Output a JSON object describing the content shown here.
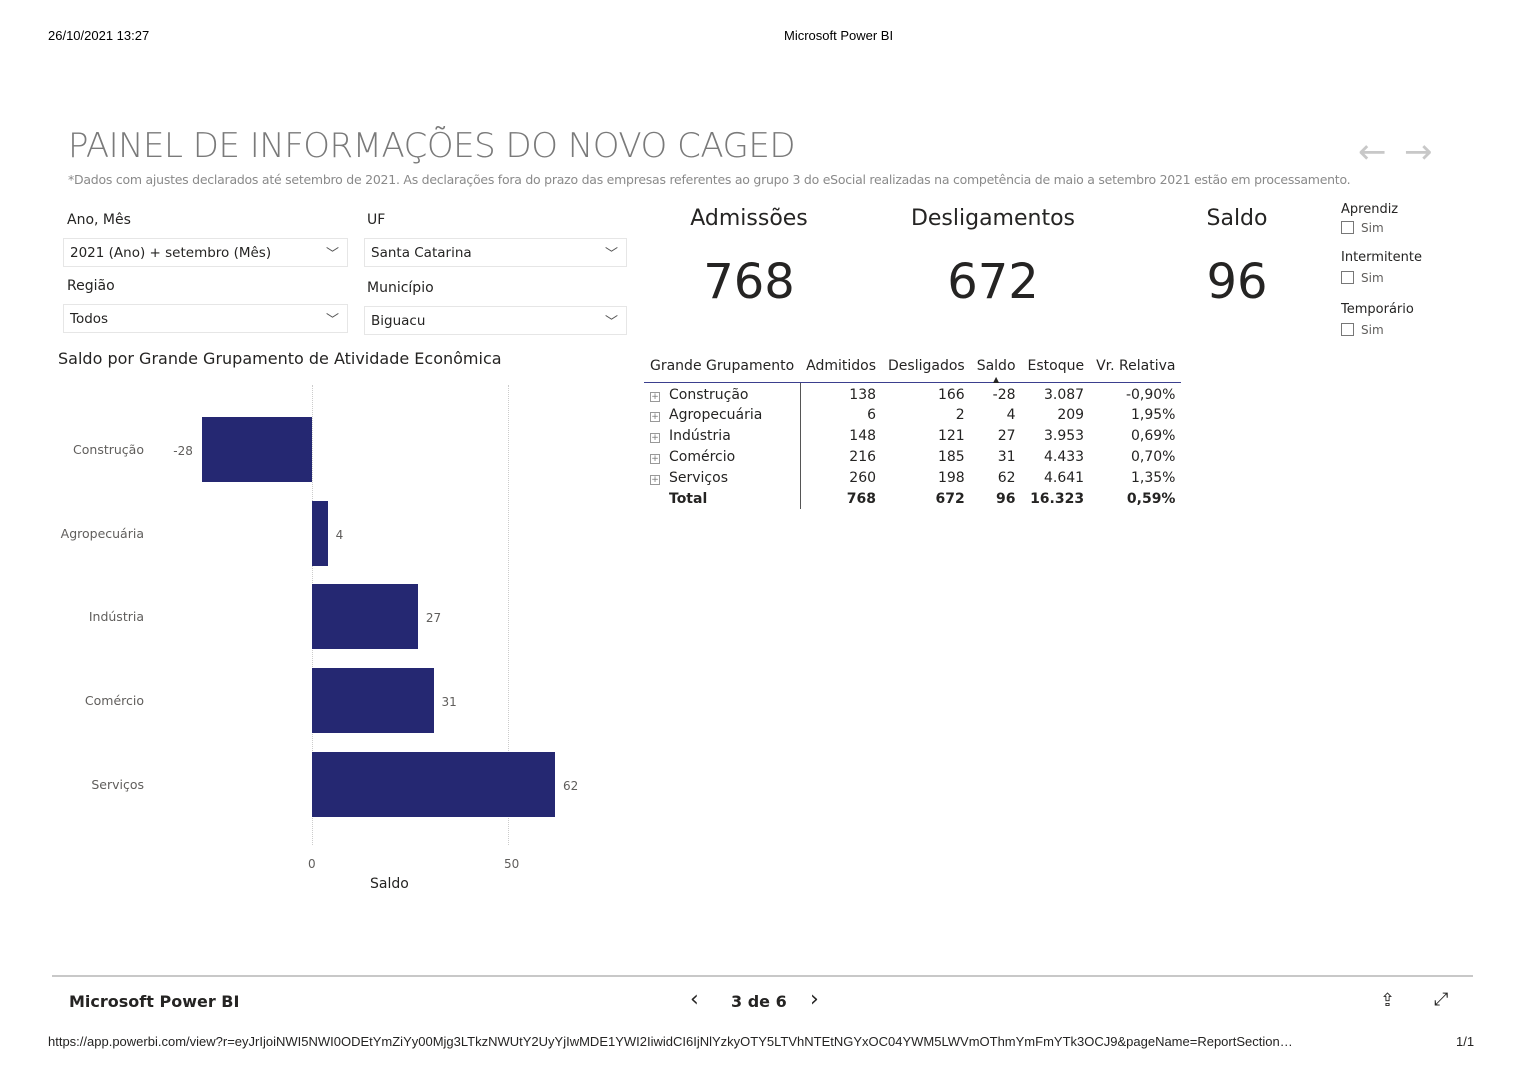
{
  "print_header": {
    "datetime": "26/10/2021 13:27",
    "title": "Microsoft Power BI"
  },
  "report": {
    "title": "PAINEL DE INFORMAÇÕES DO NOVO CAGED",
    "subtitle": "*Dados com ajustes declarados até setembro de 2021. As declarações fora do prazo das empresas referentes ao grupo 3 do eSocial realizadas na competência de maio a setembro 2021 estão em processamento."
  },
  "filters": {
    "ano_mes": {
      "label": "Ano, Mês",
      "value": "2021 (Ano) + setembro (Mês)"
    },
    "uf": {
      "label": "UF",
      "value": "Santa Catarina"
    },
    "regiao": {
      "label": "Região",
      "value": "Todos"
    },
    "municipio": {
      "label": "Município",
      "value": "Biguacu"
    }
  },
  "kpis": {
    "admissoes": {
      "label": "Admissões",
      "value": "768"
    },
    "desligamentos": {
      "label": "Desligamentos",
      "value": "672"
    },
    "saldo": {
      "label": "Saldo",
      "value": "96"
    }
  },
  "checkboxes": [
    {
      "title": "Aprendiz",
      "option": "Sim"
    },
    {
      "title": "Intermitente",
      "option": "Sim"
    },
    {
      "title": "Temporário",
      "option": "Sim"
    }
  ],
  "table": {
    "headers": [
      "Grande Grupamento",
      "Admitidos",
      "Desligados",
      "Saldo",
      "Estoque",
      "Vr. Relativa"
    ],
    "rows": [
      [
        "Construção",
        "138",
        "166",
        "-28",
        "3.087",
        "-0,90%"
      ],
      [
        "Agropecuária",
        "6",
        "2",
        "4",
        "209",
        "1,95%"
      ],
      [
        "Indústria",
        "148",
        "121",
        "27",
        "3.953",
        "0,69%"
      ],
      [
        "Comércio",
        "216",
        "185",
        "31",
        "4.433",
        "0,70%"
      ],
      [
        "Serviços",
        "260",
        "198",
        "62",
        "4.641",
        "1,35%"
      ]
    ],
    "total": [
      "Total",
      "768",
      "672",
      "96",
      "16.323",
      "0,59%"
    ]
  },
  "chart_data": {
    "type": "bar",
    "orientation": "horizontal",
    "title": "Saldo por Grande Grupamento de Atividade Econômica",
    "categories": [
      "Construção",
      "Agropecuária",
      "Indústria",
      "Comércio",
      "Serviços"
    ],
    "values": [
      -28,
      4,
      27,
      31,
      62
    ],
    "xlabel": "Saldo",
    "ylabel": "",
    "xticks": [
      "0",
      "50"
    ],
    "xlim": [
      -35,
      70
    ],
    "color": "#252872"
  },
  "footer": {
    "brand": "Microsoft Power BI",
    "page": "3 de 6"
  },
  "print_footer": {
    "url": "https://app.powerbi.com/view?r=eyJrIjoiNWI5NWI0ODEtYmZiYy00Mjg3LTkzNWUtY2UyYjIwMDE1YWI2IiwidCI6IjNlYzkyOTY5LTVhNTEtNGYxOC04YWM5LWVmOThmYmFmYTk3OCJ9&pageName=ReportSection…",
    "pages": "1/1"
  }
}
